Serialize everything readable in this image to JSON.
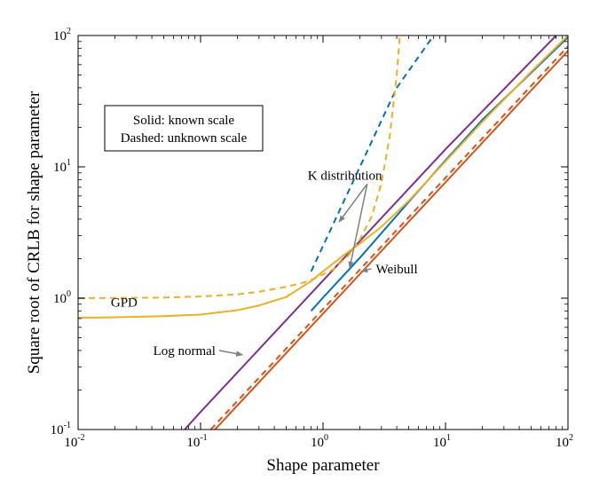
{
  "chart_data": {
    "type": "line",
    "xscale": "log",
    "yscale": "log",
    "xlim": [
      0.01,
      100
    ],
    "ylim": [
      0.1,
      100
    ],
    "xlabel": "Shape parameter",
    "ylabel": "Square root of CRLB for shape parameter",
    "grid": false,
    "x_ticks": [
      {
        "base": "10",
        "exp": "-2",
        "value": 0.01
      },
      {
        "base": "10",
        "exp": "-1",
        "value": 0.1
      },
      {
        "base": "10",
        "exp": "0",
        "value": 1
      },
      {
        "base": "10",
        "exp": "1",
        "value": 10
      },
      {
        "base": "10",
        "exp": "2",
        "value": 100
      }
    ],
    "y_ticks": [
      {
        "base": "10",
        "exp": "-1",
        "value": 0.1
      },
      {
        "base": "10",
        "exp": "0",
        "value": 1
      },
      {
        "base": "10",
        "exp": "1",
        "value": 10
      },
      {
        "base": "10",
        "exp": "2",
        "value": 100
      }
    ],
    "legend": {
      "position": "top-left",
      "lines": [
        "Solid: known scale",
        "Dashed: unknown scale"
      ]
    },
    "series": [
      {
        "color": "#7e2f8e",
        "style": "solid",
        "x": [
          0.0741,
          0.1,
          1,
          10,
          80
        ],
        "y": [
          0.1,
          0.1361,
          1.361,
          13.61,
          100
        ]
      },
      {
        "color": "#0072bd",
        "style": "solid",
        "x": [
          0.8,
          1,
          2,
          5,
          10,
          20,
          50,
          100
        ],
        "y": [
          0.8,
          1.01,
          2.03,
          5.4,
          11.2,
          22.8,
          52,
          97
        ]
      },
      {
        "color": "#0072bd",
        "style": "dashed",
        "x": [
          0.8,
          1,
          2,
          4,
          8
        ],
        "y": [
          1.6,
          2.5,
          10,
          40,
          100
        ]
      },
      {
        "color": "#d95319",
        "style": "solid",
        "x": [
          0.1311,
          1,
          10,
          100
        ],
        "y": [
          0.1,
          0.763,
          7.63,
          76.3
        ]
      },
      {
        "color": "#d95319",
        "style": "dashed",
        "x": [
          0.1211,
          1,
          10,
          100
        ],
        "y": [
          0.1,
          0.826,
          8.26,
          82.6
        ]
      },
      {
        "color": "#edb120",
        "style": "solid",
        "x": [
          0.01,
          0.02,
          0.05,
          0.1,
          0.2,
          0.3,
          0.5,
          0.8,
          1,
          1.5,
          2,
          3,
          5,
          10,
          20,
          50,
          100
        ],
        "y": [
          0.71,
          0.715,
          0.73,
          0.75,
          0.81,
          0.88,
          1.02,
          1.35,
          1.6,
          2.15,
          2.6,
          3.5,
          5.5,
          11,
          22,
          53,
          100
        ]
      },
      {
        "color": "#edb120",
        "style": "dashed",
        "x": [
          0.01,
          0.05,
          0.1,
          0.2,
          0.3,
          0.5,
          0.7,
          0.9,
          1.2,
          1.6,
          2,
          2.5,
          3,
          3.5,
          4,
          4.2,
          4.25
        ],
        "y": [
          1.0,
          1.01,
          1.03,
          1.07,
          1.12,
          1.22,
          1.32,
          1.44,
          1.65,
          2.1,
          2.8,
          4.2,
          7.5,
          17,
          50,
          90,
          100
        ]
      }
    ],
    "annotations": [
      {
        "text": "K distribution",
        "text_at": [
          0.75,
          8.0
        ],
        "arrows_to": [
          [
            1.35,
            3.8
          ],
          [
            1.65,
            1.7
          ]
        ]
      },
      {
        "text": "Weibull",
        "text_at": [
          2.7,
          1.55
        ],
        "arrows_to": [
          [
            2.05,
            1.6
          ]
        ]
      },
      {
        "text": "GPD",
        "text_at": [
          0.0185,
          0.86
        ],
        "arrows_to": []
      },
      {
        "text": "Log normal",
        "text_at": [
          0.041,
          0.37
        ],
        "arrows_to": [
          [
            0.22,
            0.37
          ]
        ]
      }
    ]
  }
}
